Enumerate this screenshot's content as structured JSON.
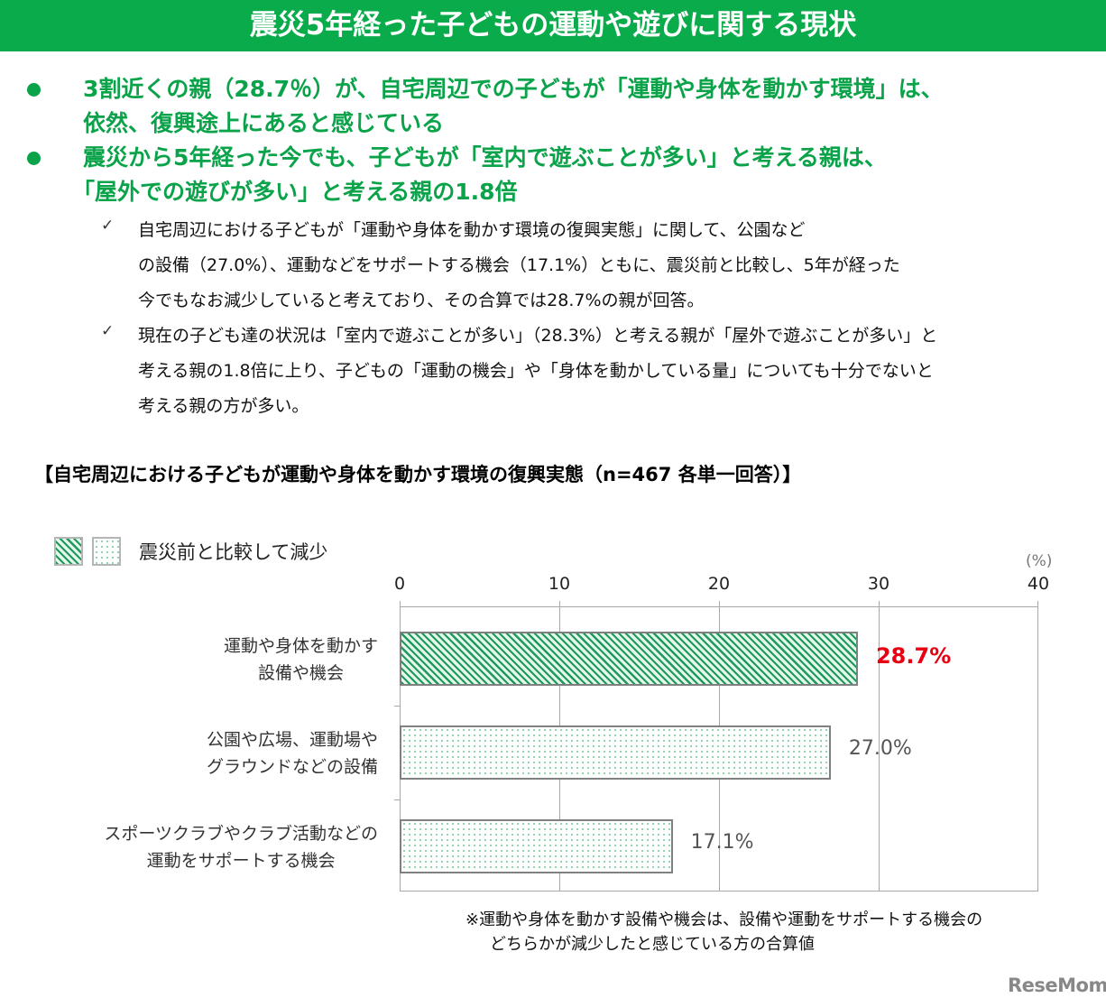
{
  "banner": {
    "title": "震災5年経った子どもの運動や遊びに関する現状"
  },
  "bullets": [
    {
      "line1": "3割近くの親（28.7％）が、自宅周辺での子どもが「運動や身体を動かす環境」は、",
      "line2": "依然、復興途上にあると感じている"
    },
    {
      "line1": "震災から5年経った今でも、子どもが「室内で遊ぶことが多い」と考える親は、",
      "line2": "「屋外での遊びが多い」と考える親の1.8倍"
    }
  ],
  "checks": [
    {
      "mark": "✓",
      "lines": [
        "自宅周辺における子どもが「運動や身体を動かす環境の復興実態」に関して、公園など",
        "の設備（27.0%）、運動などをサポートする機会（17.1%）ともに、震災前と比較し、5年が経った",
        "今でもなお減少していると考えており、その合算では28.7%の親が回答。"
      ]
    },
    {
      "mark": "✓",
      "lines": [
        "現在の子ども達の状況は「室内で遊ぶことが多い」（28.3%）と考える親が「屋外で遊ぶことが多い」と",
        "考える親の1.8倍に上り、子どもの「運動の機会」や「身体を動かしている量」についても十分でないと",
        "考える親の方が多い。"
      ]
    }
  ],
  "chart_title": "【自宅周辺における子どもが運動や身体を動かす環境の復興実態（n=467 各単一回答）】",
  "legend": {
    "label": "震災前と比較して減少"
  },
  "footnote": {
    "line1": "※運動や身体を動かす設備や機会は、設備や運動をサポートする機会の",
    "line2": "どちらかが減少したと感じている方の合算値"
  },
  "watermark": "ReseMom",
  "colors": {
    "banner": "#0aab4a",
    "bullet_text": "#0aa34a",
    "hatch": "#1f9a5a",
    "highlight_value": "#e60012"
  },
  "chart_data": {
    "type": "bar",
    "orientation": "horizontal",
    "title": "【自宅周辺における子どもが運動や身体を動かす環境の復興実態（n=467 各単一回答）】",
    "xlabel": "(%)",
    "ylabel": "",
    "xlim": [
      0,
      40
    ],
    "ticks": [
      "0",
      "10",
      "20",
      "30",
      "40"
    ],
    "grid": true,
    "legend": [
      "震災前と比較して減少"
    ],
    "legend_position": "top-left",
    "categories": [
      [
        "運動や身体を動かす",
        "設備や機会"
      ],
      [
        "公園や広場、運動場や",
        "グラウンドなどの設備"
      ],
      [
        "スポーツクラブやクラブ活動などの",
        "運動をサポートする機会"
      ]
    ],
    "values": [
      28.7,
      27.0,
      17.1
    ],
    "labels": [
      "28.7%",
      "27.0%",
      "17.1%"
    ],
    "patterns": [
      "hatch",
      "dots",
      "dots"
    ],
    "highlighted": [
      true,
      false,
      false
    ]
  }
}
